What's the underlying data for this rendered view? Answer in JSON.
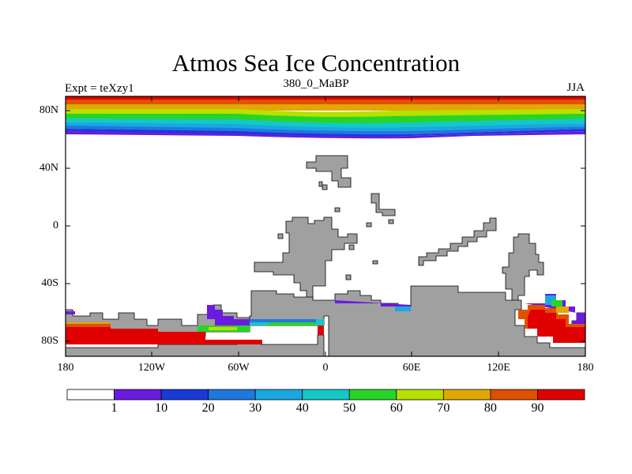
{
  "title": "Atmos Sea Ice Concentration",
  "subtitle": "380_0_MaBP",
  "expt_label": "Expt = teXzy1",
  "season": "JJA",
  "axes": {
    "lat_ticks": [
      "80N",
      "40N",
      "0",
      "40S",
      "80S"
    ],
    "lon_ticks": [
      "180",
      "120W",
      "60W",
      "0",
      "60E",
      "120E",
      "180"
    ]
  },
  "colorbar": {
    "labels": [
      "1",
      "10",
      "20",
      "30",
      "40",
      "50",
      "60",
      "70",
      "80",
      "90"
    ],
    "colors": [
      "#ffffff",
      "#6a1be0",
      "#1a3ad8",
      "#1e78e0",
      "#1aa8e0",
      "#14c8c8",
      "#28d428",
      "#b8e000",
      "#e0a800",
      "#e05000",
      "#e00000"
    ]
  },
  "colors": {
    "land": "#a0a0a0",
    "ocean": "#ffffff"
  }
}
